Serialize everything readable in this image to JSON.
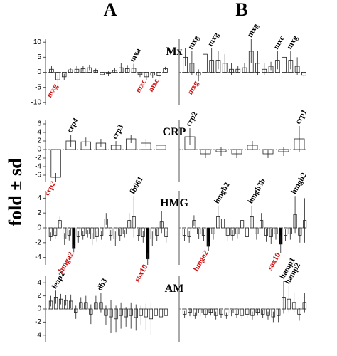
{
  "panel_labels": [
    "A",
    "B"
  ],
  "ylabel": "fold ± sd",
  "label_colors": {
    "up": "#000000",
    "down": "#cc1111"
  },
  "chart_data": [
    {
      "type": "bar",
      "title": "Mx",
      "color": "#ffffff",
      "ylim": [
        -11,
        11
      ],
      "yticks": [
        10,
        5,
        0,
        -5,
        -10
      ],
      "categories": [
        null,
        "mxg",
        null,
        null,
        null,
        null,
        null,
        null,
        null,
        null,
        null,
        null,
        null,
        "mxa",
        null,
        "mxc",
        null,
        "mxc",
        null
      ],
      "values": [
        1,
        -2.5,
        -1.5,
        0.8,
        1,
        1.2,
        1.5,
        0.5,
        -0.8,
        -0.5,
        0.6,
        1.5,
        1.2,
        1.3,
        -0.8,
        -1.5,
        -1,
        -1.2,
        1.2
      ],
      "errors": [
        1,
        1.5,
        1,
        0.7,
        1,
        1,
        1,
        0.7,
        1,
        0.8,
        0.7,
        1.5,
        1.2,
        1.5,
        0.8,
        1,
        0.8,
        1,
        0.6
      ]
    },
    {
      "type": "bar",
      "color": "#ffffff",
      "ylim": [
        -11,
        11
      ],
      "categories": [
        null,
        "mxg",
        "mxg",
        null,
        "mxg",
        null,
        null,
        null,
        null,
        null,
        "mxg",
        null,
        null,
        null,
        "mxc",
        null,
        "mxg",
        null,
        null
      ],
      "values": [
        5,
        3,
        -1,
        6,
        4,
        4,
        3,
        1,
        1,
        1.5,
        7,
        3,
        1,
        2,
        4,
        5,
        4,
        2,
        -1
      ],
      "errors": [
        3,
        4,
        2,
        5,
        4,
        3,
        3,
        2,
        1,
        1.5,
        4,
        4,
        2,
        1.5,
        3,
        6,
        3,
        3,
        1
      ]
    },
    {
      "type": "bar",
      "title": "CRP",
      "color": "#ffffff",
      "ylim": [
        -7.5,
        7
      ],
      "yticks": [
        6,
        4,
        2,
        0,
        -2,
        -4,
        -6
      ],
      "categories": [
        "crp2",
        "crp4",
        null,
        null,
        "crp3",
        null,
        null,
        null
      ],
      "values": [
        -6.5,
        2,
        1.8,
        1.5,
        1,
        2.5,
        1.5,
        1
      ],
      "errors": [
        1,
        1.5,
        1,
        1,
        1,
        1,
        1,
        0.8
      ]
    },
    {
      "type": "bar",
      "color": "#ffffff",
      "ylim": [
        -7.5,
        7
      ],
      "categories": [
        "crp2",
        null,
        null,
        null,
        null,
        null,
        null,
        "crp1"
      ],
      "values": [
        3,
        -1,
        -0.5,
        -1,
        1,
        -1,
        -0.5,
        2.5
      ],
      "errors": [
        2,
        1,
        1,
        1,
        1,
        1,
        1,
        3
      ]
    },
    {
      "type": "bar",
      "title": "HMG",
      "color": "#ffffff",
      "ylim": [
        -5,
        5
      ],
      "yticks": [
        4,
        2,
        0,
        -2,
        -4
      ],
      "categories": [
        null,
        null,
        null,
        null,
        null,
        "hmga2",
        null,
        null,
        null,
        null,
        null,
        null,
        null,
        null,
        null,
        null,
        null,
        null,
        "fb061",
        null,
        null,
        "sox10",
        null,
        null,
        null,
        null
      ],
      "values": [
        -1.2,
        -1,
        1,
        -1.5,
        -1,
        -2.8,
        -1.2,
        -1,
        -0.8,
        -1.5,
        -1.2,
        -1,
        1.2,
        -1,
        -1.5,
        -1,
        -0.8,
        1,
        1.5,
        -1,
        -1.2,
        -4.2,
        -1.5,
        -1,
        0.8,
        -1.2
      ],
      "errors": [
        0.6,
        0.5,
        0.5,
        0.8,
        0.7,
        0.5,
        0.8,
        0.6,
        0.5,
        0.8,
        0.7,
        0.6,
        0.8,
        0.7,
        1,
        0.8,
        0.5,
        1,
        2.8,
        0.8,
        0.8,
        0.8,
        1,
        0.8,
        1.5,
        0.8
      ],
      "colors": [
        "#ffffff",
        "#ffffff",
        "#ffffff",
        "#ffffff",
        "#ffffff",
        "#000000",
        "#ffffff",
        "#ffffff",
        "#ffffff",
        "#ffffff",
        "#ffffff",
        "#ffffff",
        "#ffffff",
        "#ffffff",
        "#ffffff",
        "#ffffff",
        "#ffffff",
        "#ffffff",
        "#ffffff",
        "#ffffff",
        "#ffffff",
        "#000000",
        "#ffffff",
        "#ffffff",
        "#ffffff",
        "#ffffff"
      ]
    },
    {
      "type": "bar",
      "color": "#ffffff",
      "ylim": [
        -5,
        5
      ],
      "categories": [
        null,
        null,
        null,
        null,
        null,
        "hmga2",
        null,
        "hmgb2",
        null,
        null,
        null,
        null,
        null,
        null,
        "hmgb3b",
        null,
        null,
        null,
        null,
        null,
        "sox10",
        null,
        null,
        "hmgb2",
        null,
        null
      ],
      "values": [
        -1,
        -1.2,
        1,
        -0.8,
        -1,
        -2.5,
        -0.8,
        1.5,
        1.2,
        -1,
        -1,
        -0.8,
        1,
        -1.2,
        1.5,
        -0.8,
        1,
        -1,
        -1.2,
        -0.8,
        -2.2,
        -1,
        -0.8,
        1.8,
        -1,
        1
      ],
      "errors": [
        0.8,
        0.8,
        0.7,
        0.7,
        0.8,
        0.6,
        0.8,
        1.5,
        1,
        0.8,
        0.7,
        0.6,
        1,
        0.8,
        1.5,
        0.8,
        1,
        0.9,
        1,
        0.8,
        1.2,
        0.8,
        0.8,
        2.5,
        1,
        3
      ],
      "colors": [
        "#ffffff",
        "#ffffff",
        "#ffffff",
        "#ffffff",
        "#ffffff",
        "#000000",
        "#ffffff",
        "#ffffff",
        "#ffffff",
        "#ffffff",
        "#ffffff",
        "#ffffff",
        "#ffffff",
        "#ffffff",
        "#ffffff",
        "#ffffff",
        "#ffffff",
        "#ffffff",
        "#ffffff",
        "#ffffff",
        "#000000",
        "#ffffff",
        "#ffffff",
        "#ffffff",
        "#ffffff",
        "#ffffff"
      ]
    },
    {
      "type": "bar",
      "title": "AM",
      "color": "#ffffff",
      "ylim": [
        -5,
        5
      ],
      "yticks": [
        4,
        2,
        0,
        -2,
        -4
      ],
      "categories": [
        null,
        "leap2",
        null,
        null,
        null,
        null,
        null,
        null,
        null,
        null,
        "db3",
        null,
        null,
        null,
        null,
        null,
        null,
        null,
        null,
        null,
        null,
        null,
        null,
        null
      ],
      "values": [
        1.2,
        1.8,
        1.5,
        1.3,
        1.2,
        -0.5,
        1,
        1,
        -0.8,
        1,
        1,
        -1,
        -1.2,
        -1.5,
        -1,
        -1.2,
        -1,
        -1.3,
        -1,
        -1.2,
        -1.5,
        -1,
        -1.2,
        -1
      ],
      "errors": [
        0.8,
        1,
        0.8,
        0.8,
        1,
        1,
        0.8,
        1,
        1.5,
        1,
        1.5,
        1.5,
        2.5,
        2,
        2,
        1.5,
        2,
        2,
        1.5,
        2,
        2.5,
        2,
        1.8,
        1.5
      ]
    },
    {
      "type": "bar",
      "color": "#ffffff",
      "ylim": [
        -5,
        5
      ],
      "categories": [
        null,
        null,
        null,
        null,
        null,
        null,
        null,
        null,
        null,
        null,
        null,
        null,
        null,
        null,
        null,
        null,
        null,
        null,
        null,
        "hamp1",
        "hamp2",
        null,
        null,
        null
      ],
      "values": [
        -0.8,
        -0.5,
        -1,
        -0.6,
        -0.8,
        -0.5,
        -1,
        -0.8,
        -1,
        -0.6,
        -0.8,
        -1,
        -0.8,
        -1,
        -0.5,
        -0.8,
        -1,
        -1.2,
        -1,
        1.8,
        1.5,
        1,
        -0.8,
        1
      ],
      "errors": [
        0.5,
        0.6,
        0.5,
        0.5,
        0.6,
        0.5,
        0.6,
        0.6,
        0.5,
        0.5,
        0.6,
        0.5,
        0.6,
        0.6,
        0.5,
        0.6,
        0.6,
        0.8,
        1,
        2.5,
        2,
        1.5,
        1,
        1.5
      ]
    }
  ]
}
